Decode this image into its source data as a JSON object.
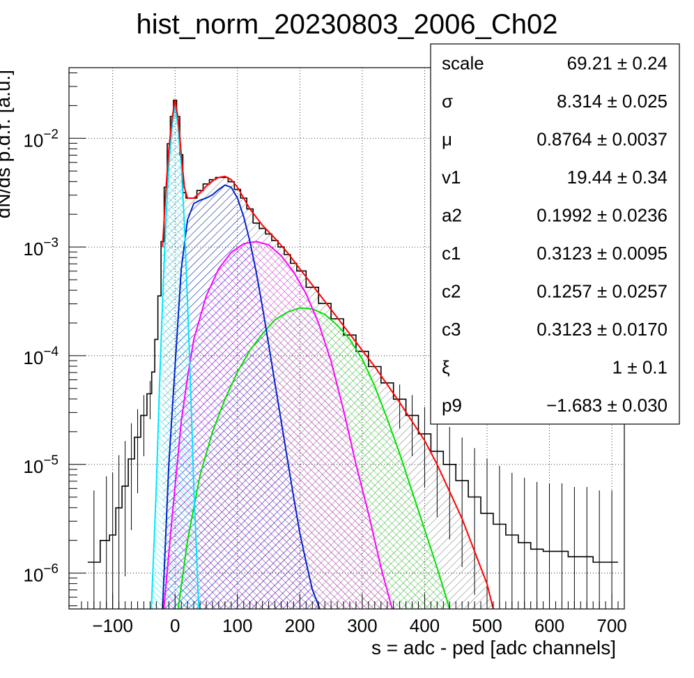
{
  "chart_data": {
    "type": "line",
    "title": "hist_norm_20230803_2006_Ch02",
    "xlabel": "s = adc - ped [adc channels]",
    "ylabel": "dN/ds p.d.f. [a.u.]",
    "xlim": [
      -170,
      720
    ],
    "ylim_log10": [
      -6.33,
      -1.35
    ],
    "y_scale": "log",
    "grid": true,
    "x_ticks": [
      -100,
      0,
      100,
      200,
      300,
      400,
      500,
      600,
      700
    ],
    "x_tick_labels": [
      "−100",
      "0",
      "100",
      "200",
      "300",
      "400",
      "500",
      "600",
      "700"
    ],
    "y_tick_exponents": [
      -2,
      -3,
      -4,
      -5,
      -6
    ],
    "y_tick_labels": [
      "10^-2",
      "10^-3",
      "10^-4",
      "10^-5",
      "10^-6"
    ],
    "series": [
      {
        "color": "#000000",
        "style": "histogram",
        "x": [
          -130,
          -110,
          -100,
          -90,
          -80,
          -70,
          -60,
          -50,
          -40,
          -35,
          -30,
          -25,
          -20,
          -15,
          -10,
          -5,
          0,
          5,
          10,
          15,
          20,
          25,
          30,
          40,
          50,
          60,
          70,
          80,
          90,
          100,
          110,
          120,
          130,
          140,
          150,
          160,
          170,
          180,
          190,
          200,
          220,
          240,
          260,
          280,
          300,
          320,
          340,
          360,
          380,
          400,
          420,
          440,
          460,
          480,
          500,
          520,
          540,
          560,
          580,
          600,
          620,
          640,
          660,
          680,
          700
        ],
        "y_log10": [
          -5.9,
          -5.7,
          -5.65,
          -5.4,
          -5.2,
          -4.95,
          -4.75,
          -4.55,
          -4.35,
          -4.15,
          -3.85,
          -3.45,
          -2.95,
          -2.45,
          -2.05,
          -1.8,
          -1.65,
          -1.8,
          -2.15,
          -2.5,
          -2.55,
          -2.55,
          -2.55,
          -2.48,
          -2.42,
          -2.38,
          -2.36,
          -2.36,
          -2.4,
          -2.47,
          -2.55,
          -2.65,
          -2.78,
          -2.83,
          -2.88,
          -2.94,
          -3.0,
          -3.07,
          -3.15,
          -3.22,
          -3.37,
          -3.52,
          -3.66,
          -3.81,
          -3.96,
          -4.1,
          -4.25,
          -4.4,
          -4.55,
          -4.72,
          -4.88,
          -5.0,
          -5.15,
          -5.3,
          -5.45,
          -5.55,
          -5.65,
          -5.72,
          -5.78,
          -5.8,
          -5.8,
          -5.85,
          -5.85,
          -5.9,
          -5.9
        ]
      },
      {
        "color": "#ff0000",
        "style": "line",
        "x": [
          -20,
          -15,
          -10,
          -5,
          0,
          5,
          10,
          15,
          20,
          30,
          40,
          50,
          60,
          70,
          80,
          90,
          100,
          120,
          140,
          160,
          180,
          200,
          240,
          280,
          320,
          360,
          400,
          420,
          440,
          460,
          480,
          500,
          510
        ],
        "y_log10": [
          -3.0,
          -2.5,
          -2.1,
          -1.82,
          -1.65,
          -1.82,
          -2.15,
          -2.45,
          -2.55,
          -2.55,
          -2.5,
          -2.44,
          -2.39,
          -2.36,
          -2.35,
          -2.38,
          -2.45,
          -2.65,
          -2.8,
          -2.92,
          -3.05,
          -3.2,
          -3.5,
          -3.8,
          -4.1,
          -4.43,
          -4.78,
          -5.0,
          -5.25,
          -5.5,
          -5.8,
          -6.1,
          -6.33
        ]
      },
      {
        "color": "#00e5ff",
        "style": "filled-hatched",
        "x": [
          -38,
          -30,
          -25,
          -20,
          -15,
          -10,
          -5,
          0,
          5,
          10,
          15,
          20,
          25,
          30,
          38
        ],
        "y_log10": [
          -6.33,
          -5.2,
          -4.3,
          -3.5,
          -2.8,
          -2.25,
          -1.9,
          -1.7,
          -1.9,
          -2.25,
          -2.8,
          -3.5,
          -4.3,
          -5.2,
          -6.33
        ]
      },
      {
        "color": "#0022cc",
        "style": "filled-hatched",
        "x": [
          -20,
          -10,
          0,
          10,
          20,
          30,
          40,
          50,
          60,
          70,
          80,
          90,
          100,
          110,
          120,
          130,
          140,
          150,
          160,
          170,
          180,
          190,
          200,
          210,
          220,
          232
        ],
        "y_log10": [
          -6.33,
          -5.0,
          -4.1,
          -3.2,
          -2.75,
          -2.6,
          -2.57,
          -2.55,
          -2.52,
          -2.47,
          -2.43,
          -2.45,
          -2.55,
          -2.72,
          -2.95,
          -3.23,
          -3.55,
          -3.9,
          -4.25,
          -4.6,
          -4.95,
          -5.3,
          -5.63,
          -5.9,
          -6.15,
          -6.33
        ]
      },
      {
        "color": "#ff00ff",
        "style": "filled-hatched",
        "x": [
          -18,
          -5,
          10,
          20,
          30,
          50,
          70,
          90,
          110,
          130,
          150,
          170,
          190,
          210,
          230,
          250,
          270,
          290,
          310,
          330,
          348
        ],
        "y_log10": [
          -6.33,
          -5.5,
          -4.6,
          -4.2,
          -3.85,
          -3.45,
          -3.2,
          -3.05,
          -2.97,
          -2.95,
          -2.98,
          -3.08,
          -3.23,
          -3.43,
          -3.7,
          -4.05,
          -4.5,
          -5.0,
          -5.45,
          -5.95,
          -6.33
        ]
      },
      {
        "color": "#00e000",
        "style": "filled-hatched",
        "x": [
          5,
          20,
          40,
          60,
          80,
          100,
          120,
          140,
          160,
          180,
          200,
          220,
          240,
          260,
          280,
          300,
          320,
          340,
          360,
          380,
          400,
          420,
          440
        ],
        "y_log10": [
          -6.33,
          -5.7,
          -5.1,
          -4.7,
          -4.4,
          -4.15,
          -3.95,
          -3.8,
          -3.67,
          -3.6,
          -3.56,
          -3.57,
          -3.62,
          -3.72,
          -3.85,
          -4.03,
          -4.28,
          -4.58,
          -4.9,
          -5.25,
          -5.6,
          -5.95,
          -6.33
        ]
      }
    ],
    "stats_box": {
      "rows": [
        {
          "name": "scale",
          "value": "69.21 ± 0.24"
        },
        {
          "name": "σ",
          "value": "8.314 ± 0.025"
        },
        {
          "name": "μ",
          "value": "0.8764 ± 0.0037"
        },
        {
          "name": "v1",
          "value": "19.44 ± 0.34"
        },
        {
          "name": "a2",
          "value": "0.1992 ± 0.0236"
        },
        {
          "name": "c1",
          "value": "0.3123 ± 0.0095"
        },
        {
          "name": "c2",
          "value": "0.1257 ± 0.0257"
        },
        {
          "name": "c3",
          "value": "0.3123 ± 0.0170"
        },
        {
          "name": "ξ",
          "value": "1 ± 0.1"
        },
        {
          "name": "p9",
          "value": "−1.683 ± 0.030"
        }
      ]
    }
  }
}
